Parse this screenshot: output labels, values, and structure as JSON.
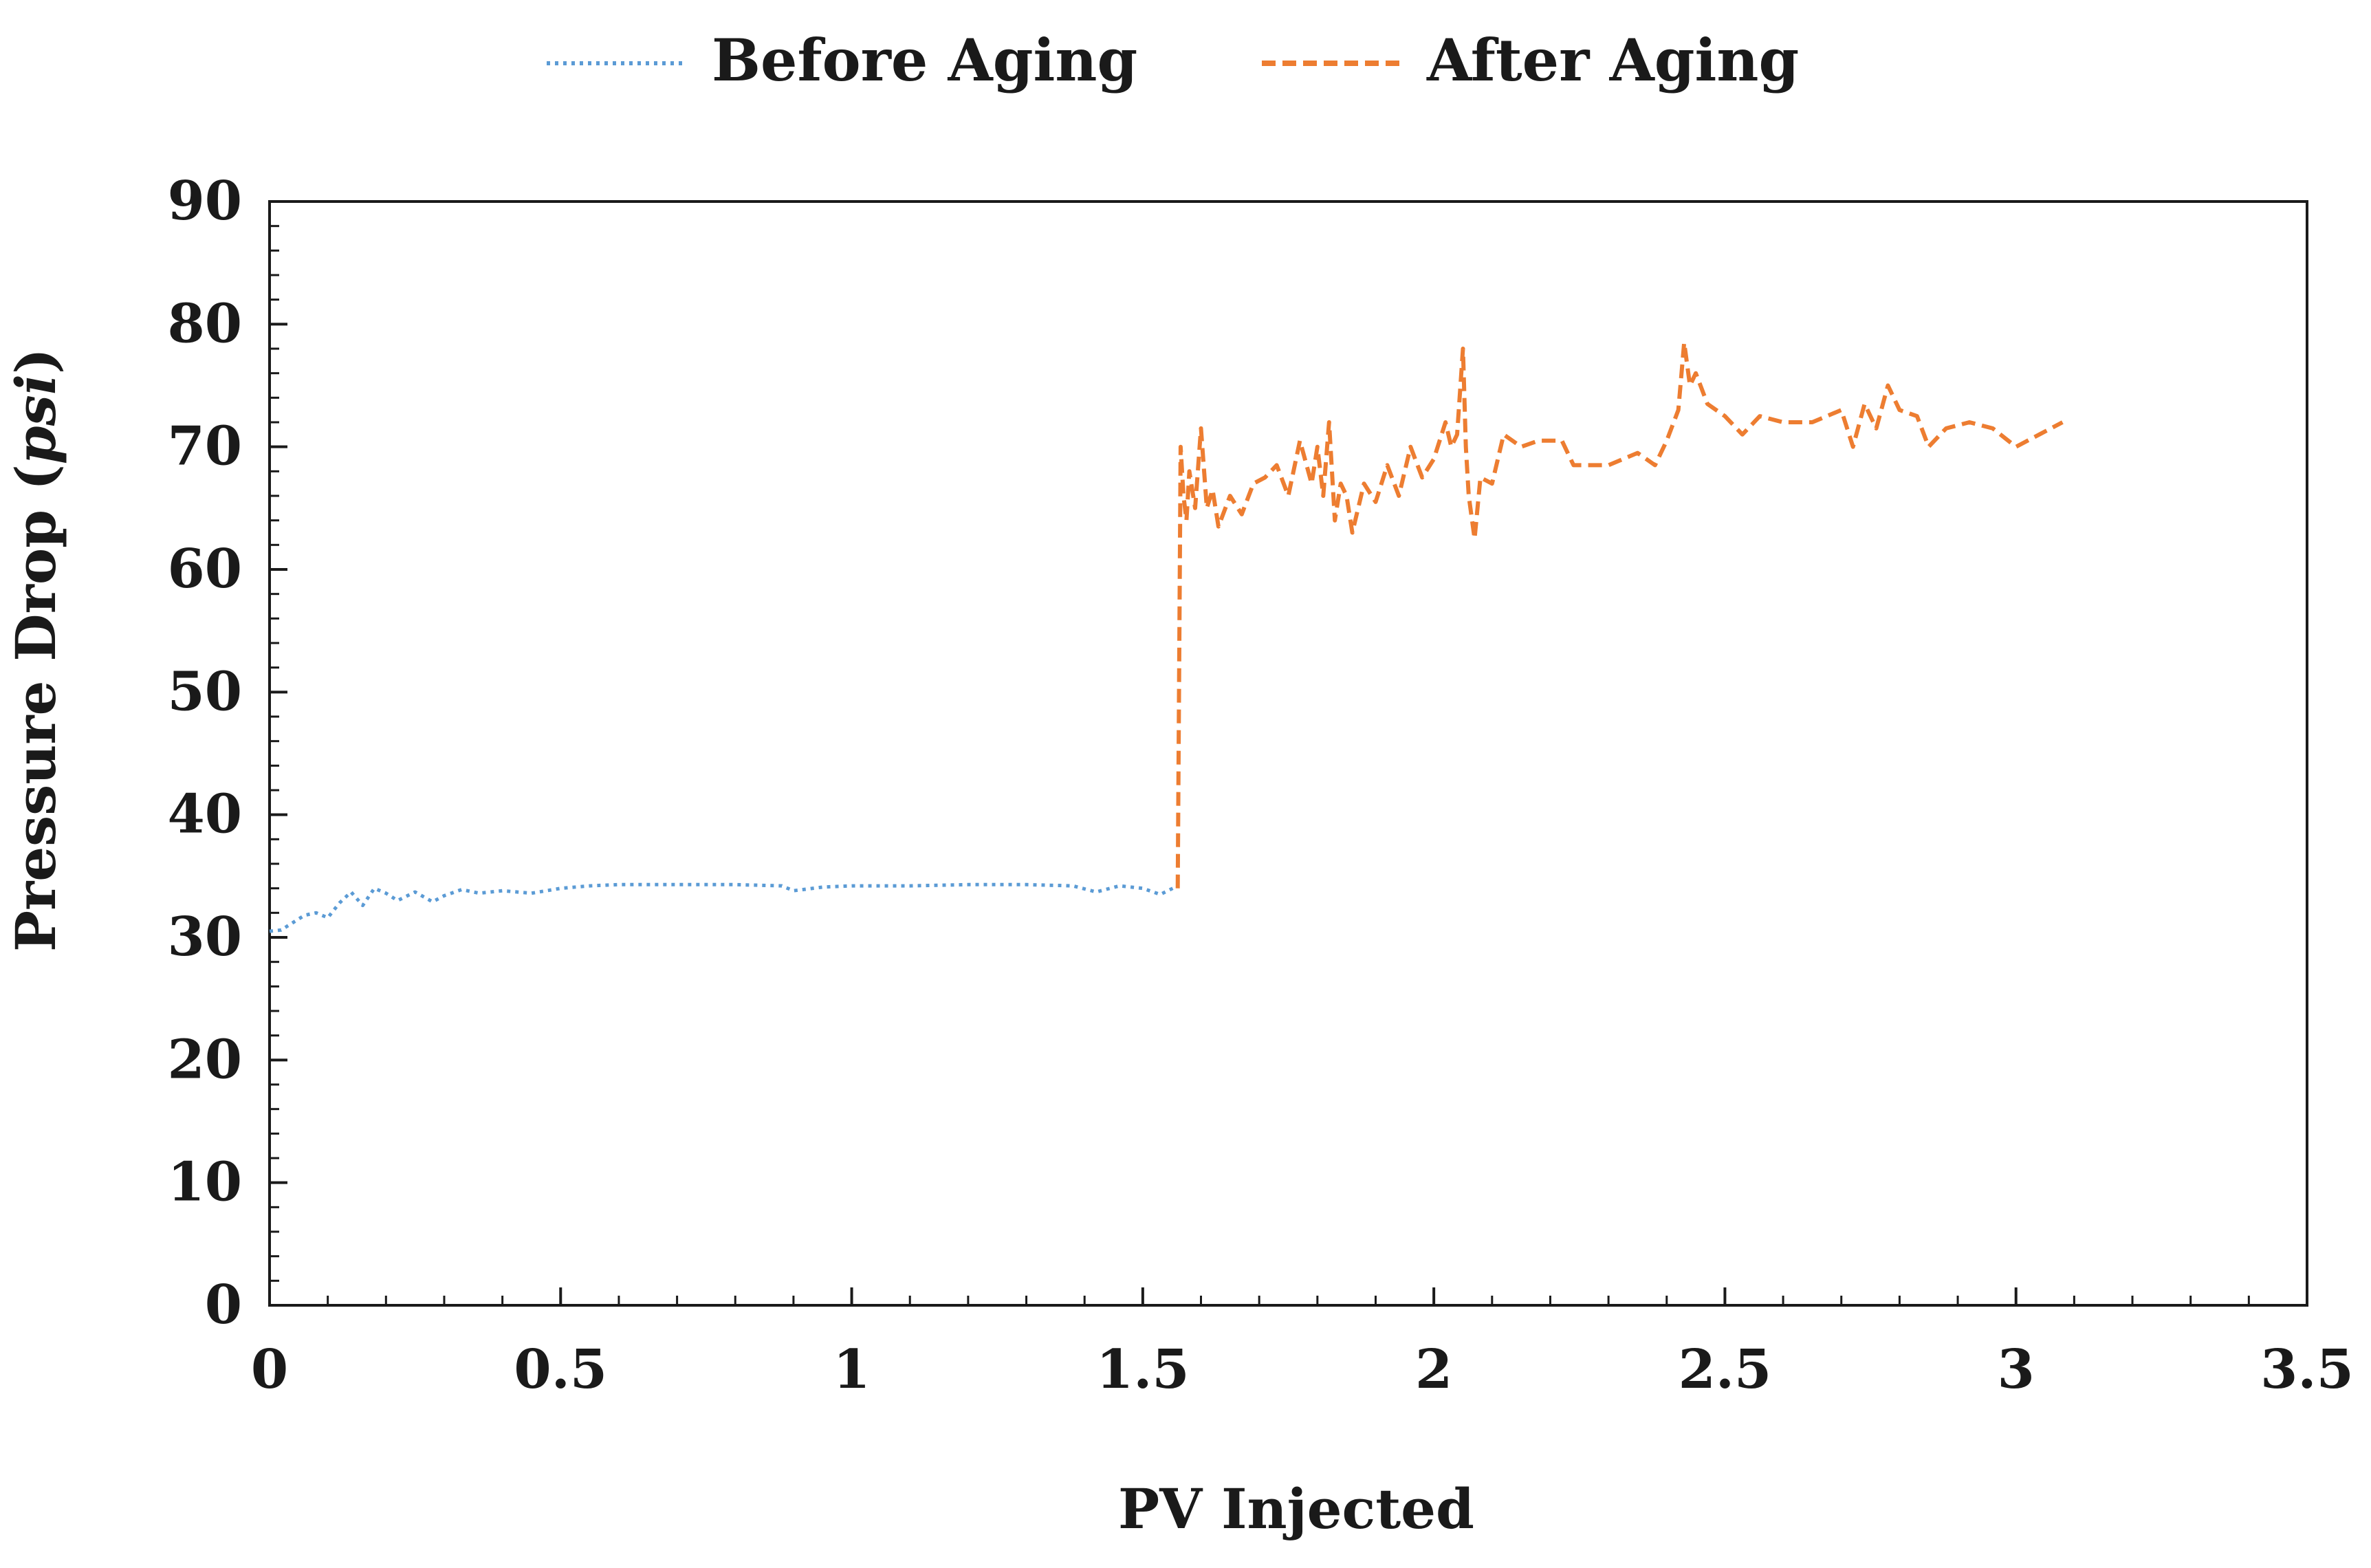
{
  "chart_data": {
    "type": "line",
    "xlabel": "PV Injected",
    "ylabel": "Pressure Drop",
    "ylabel_unit": "psi",
    "xlim": [
      0,
      3.5
    ],
    "ylim": [
      0,
      90
    ],
    "x_ticks": [
      0,
      0.5,
      1,
      1.5,
      2,
      2.5,
      3,
      3.5
    ],
    "x_tick_labels": [
      "0",
      "0.5",
      "1",
      "1.5",
      "2",
      "2.5",
      "3",
      "3.5"
    ],
    "y_ticks": [
      0,
      10,
      20,
      30,
      40,
      50,
      60,
      70,
      80,
      90
    ],
    "y_tick_labels": [
      "0",
      "10",
      "20",
      "30",
      "40",
      "50",
      "60",
      "70",
      "80",
      "90"
    ],
    "grid": false,
    "legend_position": "top-center",
    "series": [
      {
        "name": "Before Aging",
        "color": "#5b9bd5",
        "style": "dotted",
        "x": [
          0.0,
          0.02,
          0.04,
          0.06,
          0.08,
          0.1,
          0.12,
          0.14,
          0.16,
          0.18,
          0.2,
          0.22,
          0.25,
          0.28,
          0.3,
          0.33,
          0.36,
          0.4,
          0.45,
          0.5,
          0.55,
          0.6,
          0.7,
          0.8,
          0.88,
          0.9,
          0.95,
          1.0,
          1.1,
          1.2,
          1.3,
          1.38,
          1.42,
          1.46,
          1.5,
          1.53,
          1.56
        ],
        "y": [
          30.5,
          30.6,
          31.2,
          31.8,
          32.0,
          31.6,
          32.8,
          33.7,
          32.6,
          34.0,
          33.6,
          33.0,
          33.7,
          32.9,
          33.4,
          33.9,
          33.6,
          33.8,
          33.6,
          34.0,
          34.2,
          34.3,
          34.3,
          34.3,
          34.2,
          33.8,
          34.1,
          34.2,
          34.2,
          34.3,
          34.3,
          34.2,
          33.7,
          34.2,
          34.0,
          33.5,
          34.2
        ]
      },
      {
        "name": "After Aging",
        "color": "#ed7d31",
        "style": "dashed",
        "x": [
          1.56,
          1.565,
          1.57,
          1.575,
          1.58,
          1.59,
          1.6,
          1.61,
          1.62,
          1.63,
          1.65,
          1.67,
          1.69,
          1.71,
          1.73,
          1.75,
          1.77,
          1.79,
          1.8,
          1.81,
          1.82,
          1.83,
          1.84,
          1.85,
          1.86,
          1.88,
          1.9,
          1.92,
          1.94,
          1.96,
          1.98,
          2.0,
          2.02,
          2.03,
          2.04,
          2.05,
          2.055,
          2.06,
          2.07,
          2.08,
          2.1,
          2.12,
          2.15,
          2.18,
          2.22,
          2.24,
          2.26,
          2.3,
          2.35,
          2.38,
          2.4,
          2.42,
          2.43,
          2.44,
          2.45,
          2.47,
          2.5,
          2.53,
          2.56,
          2.6,
          2.65,
          2.7,
          2.72,
          2.74,
          2.76,
          2.78,
          2.8,
          2.83,
          2.85,
          2.88,
          2.92,
          2.96,
          3.0,
          3.04,
          3.08
        ],
        "y": [
          34.0,
          70.0,
          66.0,
          64.0,
          68.0,
          65.0,
          71.5,
          65.0,
          66.5,
          63.5,
          66.0,
          64.5,
          67.0,
          67.5,
          68.5,
          66.0,
          70.5,
          67.0,
          70.0,
          66.0,
          72.0,
          64.0,
          67.0,
          66.0,
          63.0,
          67.0,
          65.5,
          68.5,
          66.0,
          70.0,
          67.5,
          69.0,
          72.0,
          70.0,
          71.0,
          78.0,
          70.0,
          66.0,
          62.5,
          67.5,
          67.0,
          71.0,
          70.0,
          70.5,
          70.5,
          68.5,
          68.5,
          68.5,
          69.5,
          68.5,
          70.5,
          73.0,
          78.5,
          75.0,
          76.0,
          73.5,
          72.5,
          71.0,
          72.5,
          72.0,
          72.0,
          73.0,
          70.0,
          73.5,
          71.5,
          75.0,
          73.0,
          72.5,
          70.0,
          71.5,
          72.0,
          71.5,
          70.0,
          71.0,
          72.0
        ]
      }
    ]
  }
}
